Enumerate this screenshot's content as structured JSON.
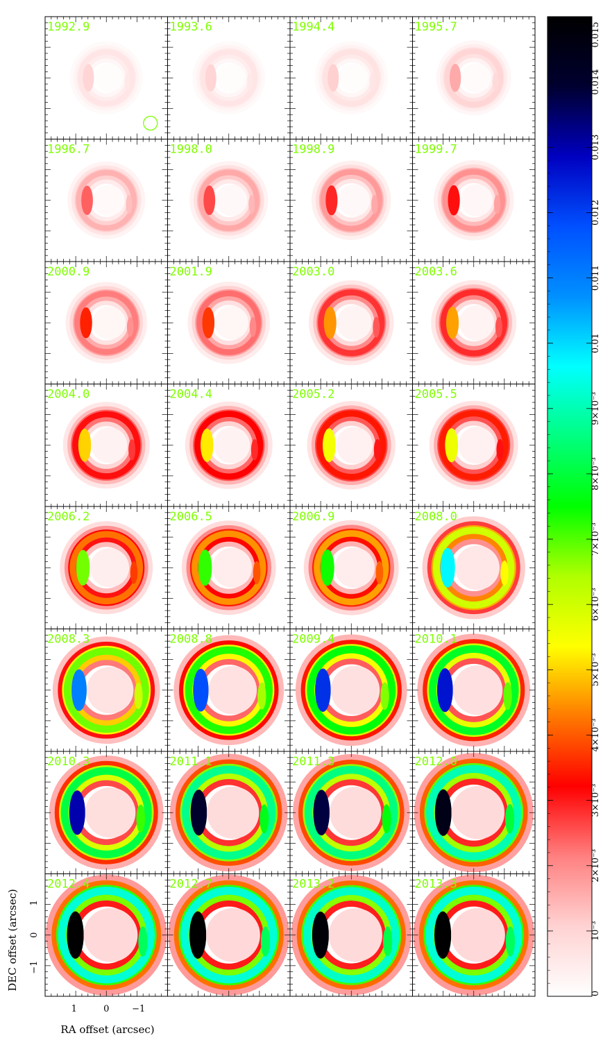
{
  "chart_data": {
    "type": "heatmap",
    "layout": "small-multiples grid, 8 rows x 4 columns",
    "epochs": [
      "1992.9",
      "1993.6",
      "1994.4",
      "1995.7",
      "1996.7",
      "1998.0",
      "1998.9",
      "1999.7",
      "2000.9",
      "2001.9",
      "2003.0",
      "2003.6",
      "2004.0",
      "2004.4",
      "2005.2",
      "2005.5",
      "2006.2",
      "2006.5",
      "2006.9",
      "2008.0",
      "2008.3",
      "2008.8",
      "2009.4",
      "2010.1",
      "2010.3",
      "2011.1",
      "2011.3",
      "2012.0",
      "2012.4",
      "2012.7",
      "2013.2",
      "2013.3"
    ],
    "peak_intensity": [
      0.001,
      0.001,
      0.0011,
      0.0016,
      0.0024,
      0.0026,
      0.0029,
      0.0031,
      0.0035,
      0.0037,
      0.0045,
      0.0046,
      0.005,
      0.0052,
      0.0055,
      0.0056,
      0.0068,
      0.0072,
      0.0074,
      0.0097,
      0.011,
      0.0118,
      0.0122,
      0.0126,
      0.013,
      0.014,
      0.0138,
      0.0145,
      0.015,
      0.015,
      0.0148,
      0.015
    ],
    "xlabel": "RA offset (arcsec)",
    "ylabel": "DEC offset (arcsec)",
    "x_ticks": [
      "1",
      "0",
      "−1"
    ],
    "y_ticks": [
      "1",
      "0",
      "−1"
    ],
    "x_range_arcsec": [
      1.9,
      -1.9
    ],
    "y_range_arcsec": [
      -1.9,
      1.9
    ],
    "colorbar": {
      "range": [
        0,
        0.015
      ],
      "tick_labels": [
        "0",
        "10⁻³",
        "2×10⁻³",
        "3×10⁻³",
        "4×10⁻³",
        "5×10⁻³",
        "6×10⁻³",
        "7×10⁻³",
        "8×10⁻³",
        "9×10⁻³",
        "0.01",
        "0.011",
        "0.012",
        "0.013",
        "0.014",
        "0.015"
      ],
      "tick_values": [
        0,
        0.001,
        0.002,
        0.003,
        0.004,
        0.005,
        0.006,
        0.007,
        0.008,
        0.009,
        0.01,
        0.011,
        0.012,
        0.013,
        0.014,
        0.015
      ],
      "colors": [
        "#ffffff",
        "#ffd2d2",
        "#ff8080",
        "#ff0000",
        "#ff7a00",
        "#ffff00",
        "#b0ff00",
        "#00ff00",
        "#00ff80",
        "#00ffff",
        "#0090ff",
        "#0050ff",
        "#0000c0",
        "#000030",
        "#000000"
      ]
    },
    "beam_marker": "circle in first panel"
  }
}
